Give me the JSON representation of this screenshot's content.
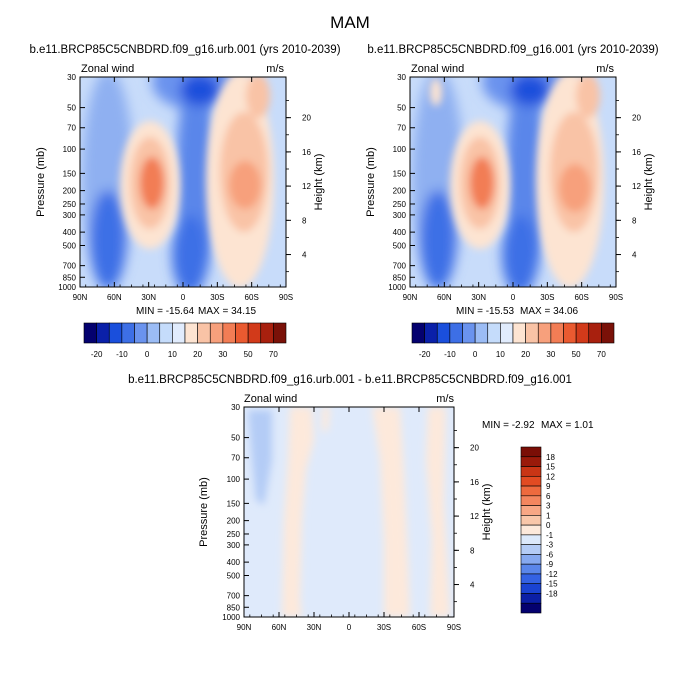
{
  "page_title": "MAM",
  "colors": {
    "blue_scale": [
      "#04016f",
      "#0a20a9",
      "#1a4fdc",
      "#3d6fe6",
      "#6a93ee",
      "#9bbcf5",
      "#c5dcfb",
      "#e1ecfd"
    ],
    "red_scale": [
      "#fde4d2",
      "#f9c3a6",
      "#f7a07c",
      "#f27d55",
      "#ea5a30",
      "#d23a1a",
      "#a8200e",
      "#7a1108"
    ],
    "diff_colors": [
      "#04016f",
      "#0b1fa6",
      "#1a43d2",
      "#3462e3",
      "#5a86ea",
      "#86a9f0",
      "#b4ccf6",
      "#dce9fb",
      "#fde9db",
      "#f9c7aa",
      "#f8a785",
      "#f4865f",
      "#ee6a3e",
      "#e24b22",
      "#c93515",
      "#9a1a0a",
      "#7a0e06"
    ]
  },
  "chart_data": [
    {
      "type": "heatmap",
      "title": "b.e11.BRCP85C5CNBDRD.f09_g16.urb.001 (yrs 2010-2039)",
      "variable": "Zonal wind",
      "units": "m/s",
      "xlabel": "",
      "ylabel": "Pressure (mb)",
      "ylabel_right": "Height (km)",
      "x_ticks": [
        "90N",
        "60N",
        "30N",
        "0",
        "30S",
        "60S",
        "90S"
      ],
      "y_ticks": [
        "30",
        "50",
        "70",
        "100",
        "150",
        "200",
        "250",
        "300",
        "400",
        "500",
        "700",
        "850",
        "1000"
      ],
      "y2_ticks": [
        "20",
        "16",
        "12",
        "8",
        "4"
      ],
      "min_label": "MIN = -15.64",
      "max_label": "MAX = 34.15",
      "min": -15.64,
      "max": 34.15,
      "colorbar_labels": [
        "-20",
        "-10",
        "0",
        "10",
        "20",
        "30",
        "50",
        "70"
      ],
      "features": [
        {
          "lat": 30,
          "pressure": 180,
          "value": 30
        },
        {
          "lat": -35,
          "pressure": 200,
          "value": 34.15
        },
        {
          "lat": 10,
          "pressure": 30,
          "value": -15.64
        }
      ]
    },
    {
      "type": "heatmap",
      "title": "b.e11.BRCP85C5CNBDRD.f09_g16.001 (yrs 2010-2039)",
      "variable": "Zonal wind",
      "units": "m/s",
      "xlabel": "",
      "ylabel": "Pressure (mb)",
      "ylabel_right": "Height (km)",
      "x_ticks": [
        "90N",
        "60N",
        "30N",
        "0",
        "30S",
        "60S",
        "90S"
      ],
      "y_ticks": [
        "30",
        "50",
        "70",
        "100",
        "150",
        "200",
        "250",
        "300",
        "400",
        "500",
        "700",
        "850",
        "1000"
      ],
      "y2_ticks": [
        "20",
        "16",
        "12",
        "8",
        "4"
      ],
      "min_label": "MIN = -15.53",
      "max_label": "MAX =  34.06",
      "min": -15.53,
      "max": 34.06,
      "colorbar_labels": [
        "-20",
        "-10",
        "0",
        "10",
        "20",
        "30",
        "50",
        "70"
      ],
      "features": [
        {
          "lat": 30,
          "pressure": 180,
          "value": 30
        },
        {
          "lat": -35,
          "pressure": 200,
          "value": 34.06
        },
        {
          "lat": 10,
          "pressure": 30,
          "value": -15.53
        }
      ]
    },
    {
      "type": "heatmap",
      "title": "b.e11.BRCP85C5CNBDRD.f09_g16.urb.001 - b.e11.BRCP85C5CNBDRD.f09_g16.001",
      "variable": "Zonal wind",
      "units": "m/s",
      "xlabel": "",
      "ylabel": "Pressure (mb)",
      "ylabel_right": "Height (km)",
      "x_ticks": [
        "90N",
        "60N",
        "30N",
        "0",
        "30S",
        "60S",
        "90S"
      ],
      "y_ticks": [
        "30",
        "50",
        "70",
        "100",
        "150",
        "200",
        "250",
        "300",
        "400",
        "500",
        "700",
        "850",
        "1000"
      ],
      "y2_ticks": [
        "20",
        "16",
        "12",
        "8",
        "4"
      ],
      "min_label": "MIN = -2.92",
      "max_label": "MAX =   1.01",
      "min": -2.92,
      "max": 1.01,
      "colorbar_labels": [
        "18",
        "15",
        "12",
        "9",
        "6",
        "3",
        "1",
        "0",
        "-1",
        "-3",
        "-6",
        "-9",
        "-12",
        "-15",
        "-18"
      ]
    }
  ]
}
